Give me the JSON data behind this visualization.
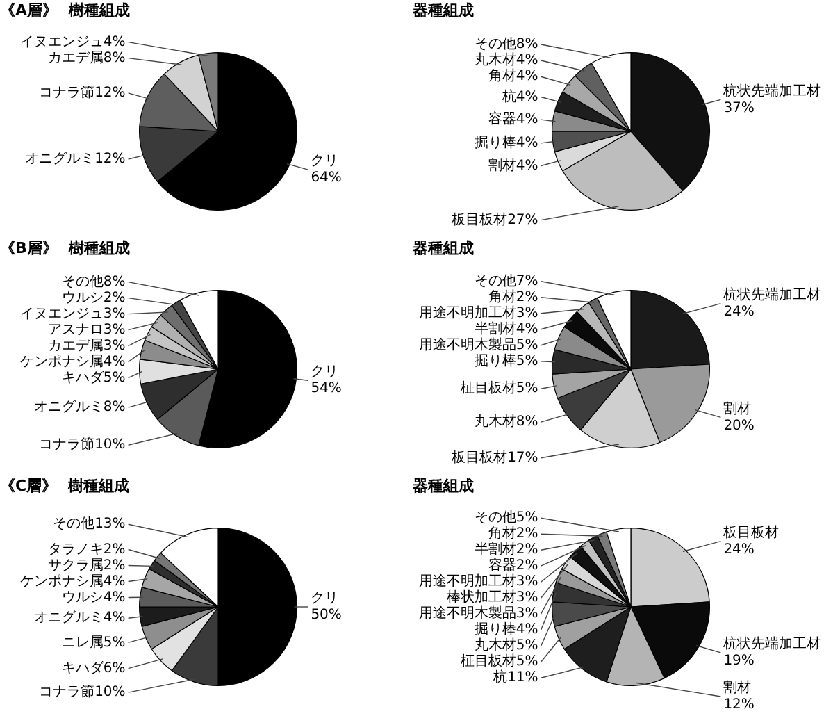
{
  "chart_data": [
    {
      "type": "pie",
      "title": "《A層》",
      "subtitle": "樹種組成",
      "categories": [
        "クリ",
        "オニグルミ",
        "コナラ節",
        "カエデ属",
        "イヌエンジュ"
      ],
      "values": [
        64,
        12,
        12,
        8,
        4
      ],
      "value_labels": [
        "64%",
        "12%",
        "12%",
        "8%",
        "4%"
      ],
      "colors": [
        "#000000",
        "#3a3a3a",
        "#5e5e5e",
        "#d2d2d2",
        "#7a7a7a"
      ]
    },
    {
      "type": "pie",
      "title": "器種組成",
      "categories": [
        "杭状先端加工材",
        "板目板材",
        "割材",
        "掘り棒",
        "容器",
        "杭",
        "角材",
        "丸木材",
        "その他"
      ],
      "values": [
        37,
        27,
        4,
        4,
        4,
        4,
        4,
        4,
        8
      ],
      "value_labels": [
        "37%",
        "27%",
        "4%",
        "4%",
        "4%",
        "4%",
        "4%",
        "4%",
        "8%"
      ],
      "colors": [
        "#111111",
        "#bdbdbd",
        "#dadada",
        "#505050",
        "#8a8a8a",
        "#1e1e1e",
        "#a8a8a8",
        "#606060",
        "#ffffff"
      ]
    },
    {
      "type": "pie",
      "title": "《B層》",
      "subtitle": "樹種組成",
      "categories": [
        "クリ",
        "コナラ節",
        "オニグルミ",
        "キハダ",
        "ケンポナシ属",
        "カエデ属",
        "アスナロ",
        "イヌエンジュ",
        "ウルシ",
        "その他"
      ],
      "values": [
        54,
        10,
        8,
        5,
        4,
        3,
        3,
        3,
        2,
        8
      ],
      "value_labels": [
        "54%",
        "10%",
        "8%",
        "5%",
        "4%",
        "3%",
        "3%",
        "3%",
        "2%",
        "8%"
      ],
      "colors": [
        "#000000",
        "#5a5a5a",
        "#2e2e2e",
        "#e0e0e0",
        "#8c8c8c",
        "#c4c4c4",
        "#b0b0b0",
        "#6e6e6e",
        "#444444",
        "#ffffff"
      ]
    },
    {
      "type": "pie",
      "title": "器種組成",
      "categories": [
        "杭状先端加工材",
        "割材",
        "板目板材",
        "丸木材",
        "柾目板材",
        "掘り棒",
        "用途不明木製品",
        "半割材",
        "用途不明加工材",
        "角材",
        "その他"
      ],
      "values": [
        24,
        20,
        17,
        8,
        5,
        5,
        5,
        4,
        3,
        2,
        7
      ],
      "value_labels": [
        "24%",
        "20%",
        "17%",
        "8%",
        "5%",
        "5%",
        "5%",
        "4%",
        "3%",
        "2%",
        "7%"
      ],
      "colors": [
        "#1a1a1a",
        "#9a9a9a",
        "#cfcfcf",
        "#3c3c3c",
        "#a4a4a4",
        "#2a2a2a",
        "#8a8a8a",
        "#0a0a0a",
        "#b8b8b8",
        "#666666",
        "#ffffff"
      ]
    },
    {
      "type": "pie",
      "title": "《C層》",
      "subtitle": "樹種組成",
      "categories": [
        "クリ",
        "コナラ節",
        "キハダ",
        "ニレ属",
        "オニグルミ",
        "ウルシ",
        "ケンポナシ属",
        "サクラ属",
        "タラノキ",
        "その他"
      ],
      "values": [
        50,
        10,
        6,
        5,
        4,
        4,
        4,
        2,
        2,
        13
      ],
      "value_labels": [
        "50%",
        "10%",
        "6%",
        "5%",
        "4%",
        "4%",
        "4%",
        "2%",
        "2%",
        "13%"
      ],
      "colors": [
        "#000000",
        "#3a3a3a",
        "#e2e2e2",
        "#8e8e8e",
        "#1c1c1c",
        "#5c5c5c",
        "#a6a6a6",
        "#2e2e2e",
        "#777777",
        "#ffffff"
      ]
    },
    {
      "type": "pie",
      "title": "器種組成",
      "categories": [
        "板目板材",
        "杭状先端加工材",
        "割材",
        "杭",
        "柾目板材",
        "丸木材",
        "掘り棒",
        "用途不明木製品",
        "棒状加工材",
        "用途不明加工材",
        "容器",
        "半割材",
        "角材",
        "その他"
      ],
      "values": [
        24,
        19,
        12,
        11,
        5,
        5,
        4,
        3,
        3,
        3,
        2,
        2,
        2,
        5
      ],
      "value_labels": [
        "24%",
        "19%",
        "12%",
        "11%",
        "5%",
        "5%",
        "4%",
        "3%",
        "3%",
        "3%",
        "2%",
        "2%",
        "2%",
        "5%"
      ],
      "colors": [
        "#cccccc",
        "#0a0a0a",
        "#b4b4b4",
        "#1e1e1e",
        "#a0a0a0",
        "#4a4a4a",
        "#333333",
        "#9a9a9a",
        "#d8d8d8",
        "#111111",
        "#c0c0c0",
        "#222222",
        "#7a7a7a",
        "#ffffff"
      ]
    }
  ]
}
